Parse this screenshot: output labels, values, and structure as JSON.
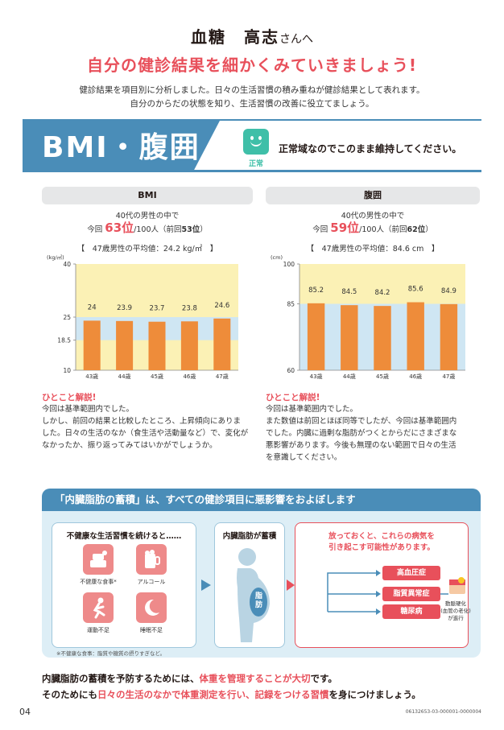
{
  "header": {
    "name": "血糖　高志",
    "name_suffix": "さんへ",
    "headline": "自分の健診結果を細かくみていきましょう!",
    "intro_line1": "健診結果を項目別に分析しました。日々の生活習慣の積み重ねが健診結果として表れます。",
    "intro_line2": "自分のからだの状態を知り、生活習慣の改善に役立てましょう。"
  },
  "section": {
    "title": "BMI・腹囲",
    "status_label": "正常",
    "status_message": "正常域なのでこのまま維持してください。"
  },
  "bmi": {
    "tab": "BMI",
    "group_line": "40代の男性の中で",
    "rank_prefix": "今回",
    "rank": "63位",
    "rank_mid": "/100人（前回",
    "rank_prev": "53位",
    "rank_suffix": "）",
    "average": "【　47歳男性の平均値：24.2 kg/㎡　】",
    "comment_title": "ひとこと解説!",
    "comment_line1": "今回は基準範囲内でした。",
    "comment_line2": "しかし、前回の結果と比較したところ、上昇傾向にありま",
    "comment_line3": "した。日々の生活のなか（食生活や活動量など）で、変化が",
    "comment_line4": "なかったか、振り返ってみてはいかがでしょうか。"
  },
  "waist": {
    "tab": "腹囲",
    "group_line": "40代の男性の中で",
    "rank_prefix": "今回",
    "rank": "59位",
    "rank_mid": "/100人（前回",
    "rank_prev": "62位",
    "rank_suffix": "）",
    "average": "【　47歳男性の平均値：84.6 cm　】",
    "comment_title": "ひとこと解説!",
    "comment_line1": "今回は基準範囲内でした。",
    "comment_line2": "また数値は前回とほぼ同等でしたが、今回は基準範囲内",
    "comment_line3": "でした。内臓に過剰な脂肪がつくとからだにさまざまな",
    "comment_line4": "悪影響があります。今後も無理のない範囲で日々の生活",
    "comment_line5": "を意識してください。"
  },
  "chart_data": [
    {
      "type": "bar",
      "unit_label": "(kg/㎡)",
      "categories": [
        "43歳",
        "44歳",
        "45歳",
        "46歳",
        "47歳"
      ],
      "values": [
        24,
        23.9,
        23.7,
        23.8,
        24.6
      ],
      "value_labels": [
        "24",
        "23.9",
        "23.7",
        "23.8",
        "24.6"
      ],
      "yticks": [
        "40",
        "25",
        "18.5",
        "10"
      ],
      "ylim": [
        10,
        40
      ],
      "normal_range": [
        18.5,
        25
      ],
      "colors": {
        "bar": "#ee8c3a",
        "normal": "#cfe6f3",
        "out": "#fbf1b5"
      }
    },
    {
      "type": "bar",
      "unit_label": "(cm)",
      "categories": [
        "43歳",
        "44歳",
        "45歳",
        "46歳",
        "47歳"
      ],
      "values": [
        85.2,
        84.5,
        84.2,
        85.6,
        84.9
      ],
      "value_labels": [
        "85.2",
        "84.5",
        "84.2",
        "85.6",
        "84.9"
      ],
      "yticks": [
        "100",
        "85",
        "60"
      ],
      "ylim": [
        60,
        100
      ],
      "normal_range": [
        60,
        85
      ],
      "colors": {
        "bar": "#ee8c3a",
        "normal": "#cfe6f3",
        "out": "#fbf1b5"
      }
    }
  ],
  "visceral": {
    "heading": "「内臓脂肪の蓄積」は、すべての健診項目に悪影響をおよぼします",
    "habits_title": "不健康な生活習慣を続けると……",
    "habits": [
      "不健康な食事*",
      "アルコール",
      "運動不足",
      "睡眠不足"
    ],
    "habit_icons": [
      "food-icon",
      "beer-icon",
      "running-icon",
      "moon-icon"
    ],
    "footnote": "※不健康な食事：脂質や糖質の摂りすぎなど。",
    "fat_title": "内臓脂肪が蓄積",
    "fat_label": "脂肪",
    "risk_line1": "放っておくと、これらの病気を",
    "risk_line2": "引き起こす可能性があります。",
    "diseases": [
      "高血圧症",
      "脂質異常症",
      "糖尿病"
    ],
    "outcome_line1": "動脈硬化",
    "outcome_line2": "(血管の老化)",
    "outcome_line3": "が進行"
  },
  "closing": {
    "l1_a": "内臓脂肪の蓄積を予防するためには、",
    "l1_b": "体重を管理することが大切",
    "l1_c": "です。",
    "l2_a": "そのためにも",
    "l2_b": "日々の生活のなかで体重測定を行い、記録をつける習慣",
    "l2_c": "を身につけましょう。"
  },
  "footer": {
    "page": "04",
    "code": "06132653-03-000001-0000004"
  }
}
